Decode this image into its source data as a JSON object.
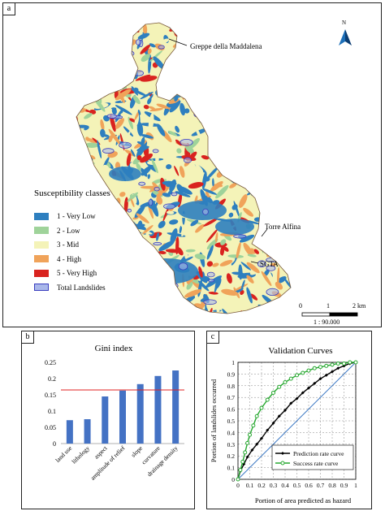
{
  "panel_a": {
    "label": "a",
    "legend_title": "Susceptibility classes",
    "legend": [
      {
        "label": "1 - Very Low",
        "color": "#2e7fbf"
      },
      {
        "label": "2 - Low",
        "color": "#9fd39a"
      },
      {
        "label": "3 - Mid",
        "color": "#f4f3b8"
      },
      {
        "label": "4 - High",
        "color": "#f0a35a"
      },
      {
        "label": "5 - Very High",
        "color": "#d9231f"
      },
      {
        "label": "Total Landslides",
        "color": "#a9b7ea",
        "border": "#3a3dbf"
      }
    ],
    "places": {
      "north": "Greppe della Maddalena",
      "east": "Torre Alfina",
      "south": "SGTA"
    },
    "north_arrow": "N",
    "scale": {
      "t0": "0",
      "t1": "1",
      "t2": "2 km",
      "ratio": "1 : 90.000"
    }
  },
  "chart_data": [
    {
      "panel": "b",
      "type": "bar",
      "title": "Gini index",
      "categories": [
        "land use",
        "lithology",
        "aspect",
        "amplitude of relief",
        "slope",
        "curvature",
        "drainage density"
      ],
      "values": [
        0.072,
        0.075,
        0.145,
        0.163,
        0.183,
        0.208,
        0.225
      ],
      "threshold": 0.165,
      "ylim": [
        0,
        0.25
      ],
      "yticks": [
        "0",
        "0.05",
        "0.1",
        "0.15",
        "0.2",
        "0.25"
      ],
      "bar_color": "#4472c4",
      "threshold_color": "#e02020"
    },
    {
      "panel": "c",
      "type": "line",
      "title": "Validation Curves",
      "xlabel": "Portion of area predicted as hazard",
      "ylabel": "Portion of landslides occurred",
      "xlim": [
        0,
        1
      ],
      "ylim": [
        0,
        1
      ],
      "ticks": [
        "0",
        "0.1",
        "0.2",
        "0.3",
        "0.4",
        "0.5",
        "0.6",
        "0.7",
        "0.8",
        "0.9",
        "1"
      ],
      "series": [
        {
          "name": "Prediction rate curve",
          "color": "#000000",
          "x": [
            0,
            0.02,
            0.05,
            0.08,
            0.12,
            0.16,
            0.2,
            0.25,
            0.3,
            0.35,
            0.4,
            0.45,
            0.5,
            0.55,
            0.6,
            0.65,
            0.7,
            0.75,
            0.8,
            0.85,
            0.9,
            0.95,
            1
          ],
          "y": [
            0,
            0.07,
            0.13,
            0.19,
            0.25,
            0.3,
            0.35,
            0.42,
            0.48,
            0.54,
            0.59,
            0.65,
            0.69,
            0.74,
            0.78,
            0.82,
            0.86,
            0.89,
            0.92,
            0.95,
            0.97,
            0.99,
            1
          ]
        },
        {
          "name": "Success rate curve",
          "color": "#27a830",
          "x": [
            0,
            0.02,
            0.04,
            0.06,
            0.08,
            0.1,
            0.13,
            0.16,
            0.2,
            0.25,
            0.3,
            0.35,
            0.4,
            0.45,
            0.5,
            0.55,
            0.6,
            0.65,
            0.7,
            0.75,
            0.8,
            0.85,
            0.9,
            0.95,
            1
          ],
          "y": [
            0,
            0.08,
            0.15,
            0.23,
            0.31,
            0.38,
            0.46,
            0.54,
            0.61,
            0.68,
            0.74,
            0.79,
            0.83,
            0.86,
            0.89,
            0.91,
            0.93,
            0.95,
            0.96,
            0.97,
            0.98,
            0.99,
            0.99,
            1,
            1
          ]
        }
      ]
    }
  ]
}
